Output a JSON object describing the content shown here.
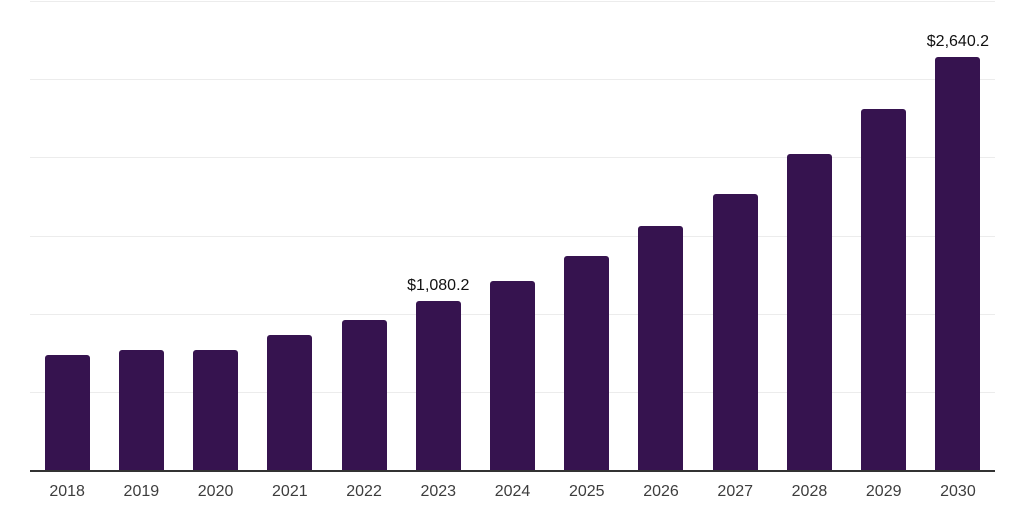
{
  "chart_data": {
    "type": "bar",
    "title": "",
    "xlabel": "",
    "ylabel": "",
    "categories": [
      "2018",
      "2019",
      "2020",
      "2021",
      "2022",
      "2023",
      "2024",
      "2025",
      "2026",
      "2027",
      "2028",
      "2029",
      "2030"
    ],
    "values": [
      735,
      765,
      765,
      865,
      960,
      1080.2,
      1210,
      1370,
      1560,
      1765,
      2020,
      2310,
      2640.2
    ],
    "data_labels": [
      {
        "category": "2023",
        "text": "$1,080.2"
      },
      {
        "category": "2030",
        "text": "$2,640.2"
      }
    ],
    "ylim": [
      0,
      3000
    ],
    "gridline_values": [
      500,
      1000,
      1500,
      2000,
      2500,
      3000
    ],
    "grid": "horizontal",
    "legend_position": "none",
    "colors": {
      "bar": "#36134f",
      "gridline": "#ececec",
      "axis_line": "#333333",
      "tick_label": "#3d3d3d",
      "data_label": "#111111",
      "background": "#ffffff"
    }
  }
}
